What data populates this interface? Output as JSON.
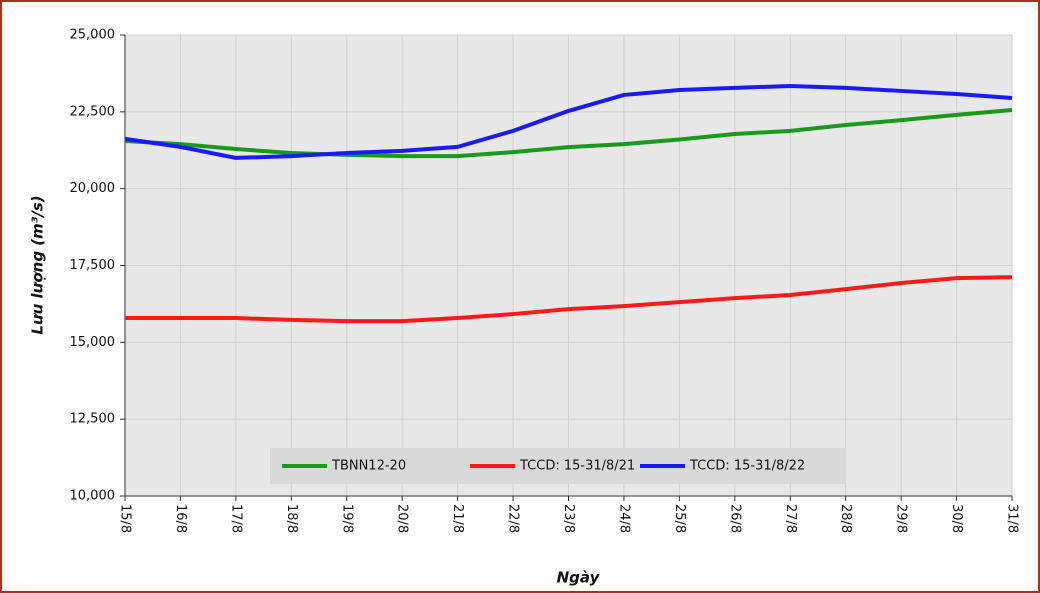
{
  "chart_data": {
    "type": "line",
    "x_label": "Ngày",
    "y_label": "Lưu lượng (m³/s)",
    "categories": [
      "15/8",
      "16/8",
      "17/8",
      "18/8",
      "19/8",
      "20/8",
      "21/8",
      "22/8",
      "23/8",
      "24/8",
      "25/8",
      "26/8",
      "27/8",
      "28/8",
      "29/8",
      "30/8",
      "31/8"
    ],
    "series": [
      {
        "name": "TBNN12-20",
        "color": "#1a9a1a",
        "values": [
          21550,
          21450,
          21290,
          21160,
          21100,
          21060,
          21060,
          21190,
          21350,
          21450,
          21600,
          21780,
          21880,
          22070,
          22230,
          22400,
          22560
        ]
      },
      {
        "name": "TCCD: 15-31/8/21",
        "color": "#ff1a1a",
        "values": [
          15790,
          15790,
          15790,
          15730,
          15690,
          15690,
          15790,
          15920,
          16080,
          16180,
          16310,
          16440,
          16540,
          16730,
          16930,
          17090,
          17120
        ]
      },
      {
        "name": "TCCD: 15-31/8/22",
        "color": "#1a1aff",
        "values": [
          21620,
          21360,
          21000,
          21060,
          21160,
          21230,
          21360,
          21880,
          22530,
          23050,
          23210,
          23280,
          23340,
          23280,
          23180,
          23080,
          22950
        ]
      }
    ],
    "ylim": [
      10000,
      25000
    ],
    "yticks": [
      {
        "value": 10000,
        "label": "10,000"
      },
      {
        "value": 12500,
        "label": "12,500"
      },
      {
        "value": 15000,
        "label": "15,000"
      },
      {
        "value": 17500,
        "label": "17,500"
      },
      {
        "value": 20000,
        "label": "20,000"
      },
      {
        "value": 22500,
        "label": "22,500"
      },
      {
        "value": 25000,
        "label": "25,000"
      }
    ],
    "grid": true,
    "legend": "bottom"
  }
}
